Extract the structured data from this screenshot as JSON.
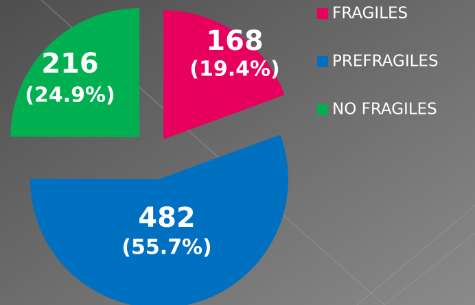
{
  "chart_data": {
    "type": "pie",
    "categories": [
      "FRAGILES",
      "PREFRAGILES",
      "NO FRAGILES"
    ],
    "values": [
      168,
      482,
      216
    ],
    "percentages": [
      19.4,
      55.7,
      24.9
    ],
    "percentage_labels": [
      "(19.4%)",
      "(55.7%)",
      "(24.9%)"
    ],
    "colors": [
      "#e8005f",
      "#0070c0",
      "#00b050"
    ],
    "legend": "right"
  }
}
